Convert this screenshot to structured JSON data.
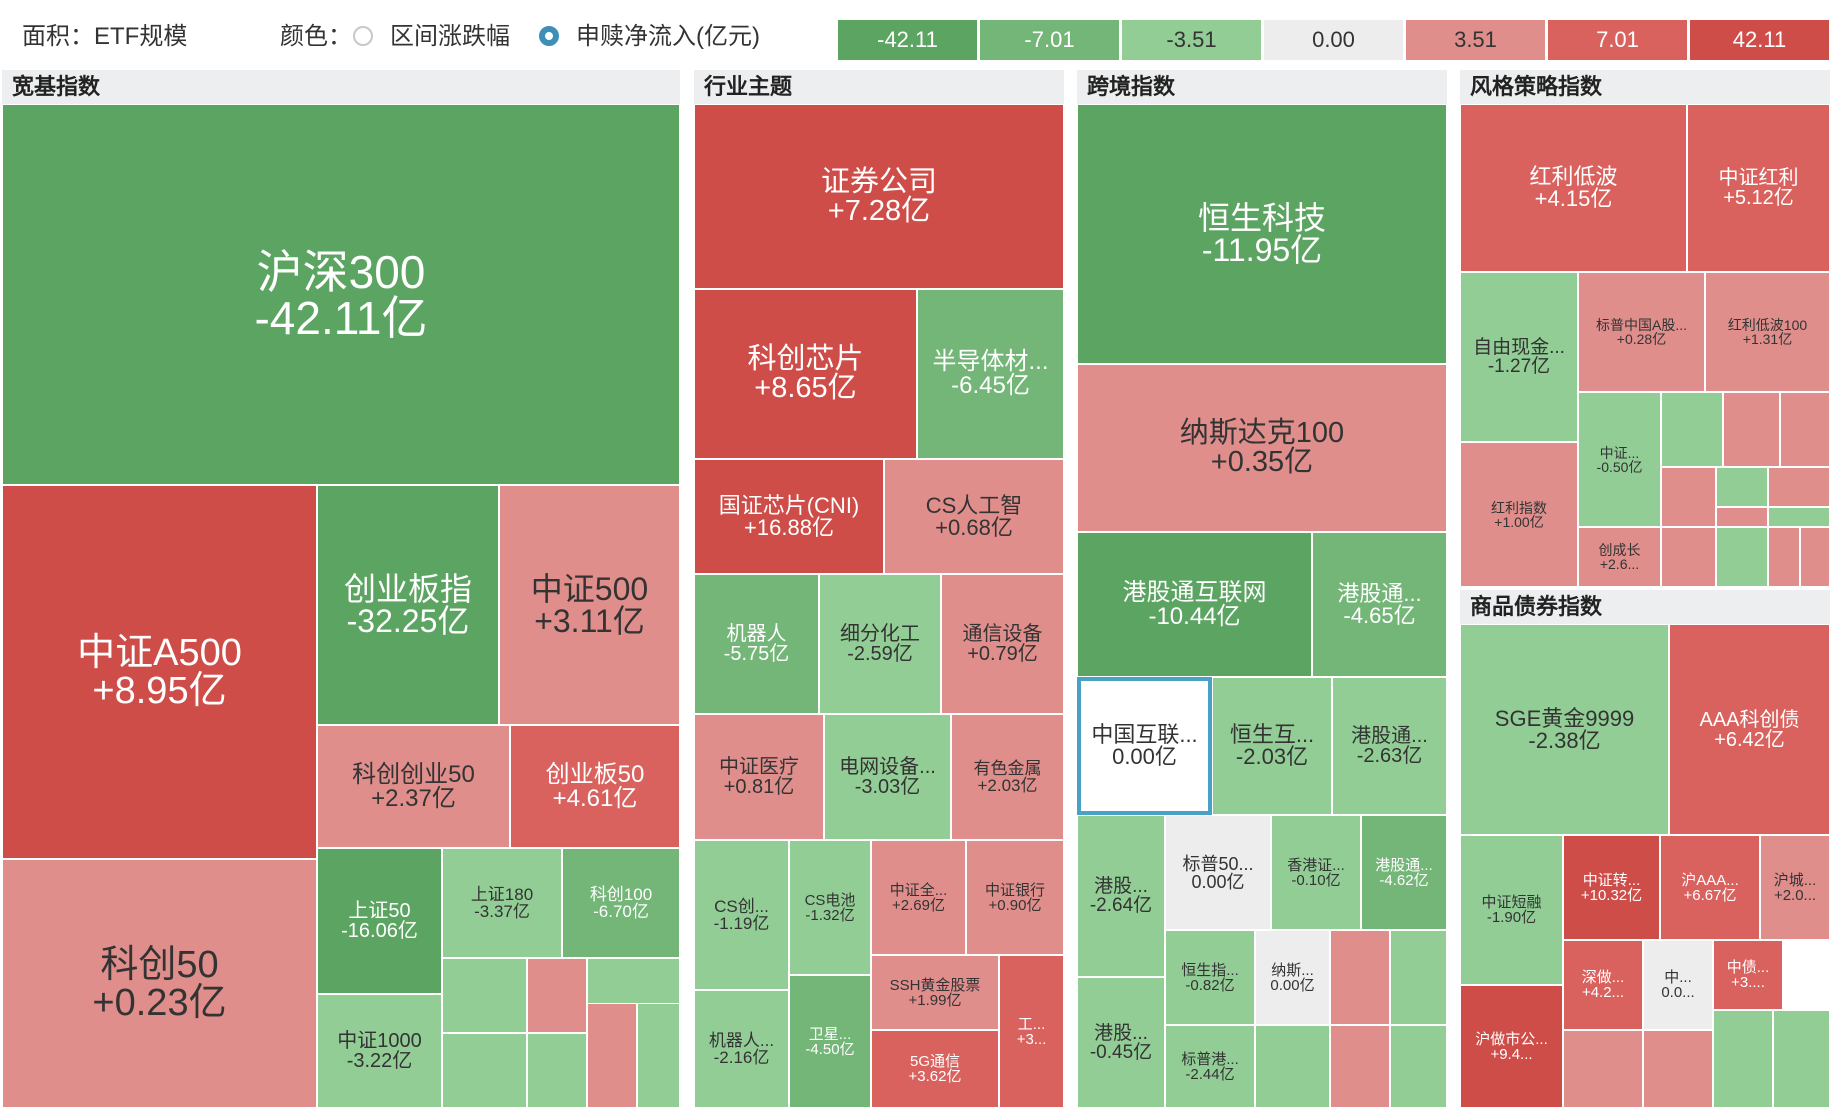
{
  "toolbar": {
    "area_label": "面积：ETF规模",
    "color_label": "颜色：",
    "option_range": "区间涨跌幅",
    "option_flow": "申赎净流入(亿元)",
    "selected": "option_flow"
  },
  "legend": [
    {
      "label": "-42.11",
      "color": "#5ca462",
      "text": "#ffffff"
    },
    {
      "label": "-7.01",
      "color": "#73b678",
      "text": "#ffffff"
    },
    {
      "label": "-3.51",
      "color": "#92cd96",
      "text": "#333333"
    },
    {
      "label": "0.00",
      "color": "#ededed",
      "text": "#333333"
    },
    {
      "label": "3.51",
      "color": "#df8e8c",
      "text": "#333333"
    },
    {
      "label": "7.01",
      "color": "#d9625f",
      "text": "#ffffff"
    },
    {
      "label": "42.11",
      "color": "#cf4d49",
      "text": "#ffffff"
    }
  ],
  "panels": [
    {
      "title": "宽基指数"
    },
    {
      "title": "行业主题"
    },
    {
      "title": "跨境指数"
    },
    {
      "title": "风格策略指数"
    },
    {
      "title": "商品债券指数"
    }
  ],
  "tiles": [
    {
      "name": "沪深300",
      "flow": "-42.11亿",
      "color": "#5ca462"
    },
    {
      "name": "中证A500",
      "flow": "+8.95亿",
      "color": "#cf4d49"
    },
    {
      "name": "创业板指",
      "flow": "-32.25亿",
      "color": "#5ca462"
    },
    {
      "name": "中证500",
      "flow": "+3.11亿",
      "color": "#df8e8c"
    },
    {
      "name": "科创创业50",
      "flow": "+2.37亿",
      "color": "#df8e8c"
    },
    {
      "name": "创业板50",
      "flow": "+4.61亿",
      "color": "#d9625f"
    },
    {
      "name": "科创50",
      "flow": "+0.23亿",
      "color": "#df8e8c"
    },
    {
      "name": "上证50",
      "flow": "-16.06亿",
      "color": "#5ca462"
    },
    {
      "name": "上证180",
      "flow": "-3.37亿",
      "color": "#92cd96"
    },
    {
      "name": "科创100",
      "flow": "-6.70亿",
      "color": "#73b678"
    },
    {
      "name": "中证1000",
      "flow": "-3.22亿",
      "color": "#92cd96"
    },
    {
      "name": "",
      "flow": "",
      "color": "#92cd96"
    },
    {
      "name": "",
      "flow": "",
      "color": "#df8e8c"
    },
    {
      "name": "",
      "flow": "",
      "color": "#92cd96"
    },
    {
      "name": "",
      "flow": "",
      "color": "#92cd96"
    },
    {
      "name": "",
      "flow": "",
      "color": "#92cd96"
    },
    {
      "name": "",
      "flow": "",
      "color": "#df8e8c"
    },
    {
      "name": "",
      "flow": "",
      "color": "#92cd96"
    },
    {
      "name": "",
      "flow": "",
      "color": "#92cd96"
    },
    {
      "name": "",
      "flow": "",
      "color": "#92cd96"
    },
    {
      "name": "证券公司",
      "flow": "+7.28亿",
      "color": "#cf4d49"
    },
    {
      "name": "科创芯片",
      "flow": "+8.65亿",
      "color": "#cf4d49"
    },
    {
      "name": "半导体材...",
      "flow": "-6.45亿",
      "color": "#73b678"
    },
    {
      "name": "国证芯片(CNI)",
      "flow": "+16.88亿",
      "color": "#cf4d49"
    },
    {
      "name": "CS人工智",
      "flow": "+0.68亿",
      "color": "#df8e8c"
    },
    {
      "name": "机器人",
      "flow": "-5.75亿",
      "color": "#73b678"
    },
    {
      "name": "细分化工",
      "flow": "-2.59亿",
      "color": "#92cd96"
    },
    {
      "name": "通信设备",
      "flow": "+0.79亿",
      "color": "#df8e8c"
    },
    {
      "name": "中证医疗",
      "flow": "+0.81亿",
      "color": "#df8e8c"
    },
    {
      "name": "电网设备...",
      "flow": "-3.03亿",
      "color": "#92cd96"
    },
    {
      "name": "有色金属",
      "flow": "+2.03亿",
      "color": "#df8e8c"
    },
    {
      "name": "CS创...",
      "flow": "-1.19亿",
      "color": "#92cd96"
    },
    {
      "name": "CS电池",
      "flow": "-1.32亿",
      "color": "#92cd96"
    },
    {
      "name": "中证全...",
      "flow": "+2.69亿",
      "color": "#df8e8c"
    },
    {
      "name": "中证银行",
      "flow": "+0.90亿",
      "color": "#df8e8c"
    },
    {
      "name": "SSH黄金股票",
      "flow": "+1.99亿",
      "color": "#df8e8c"
    },
    {
      "name": "机器人...",
      "flow": "-2.16亿",
      "color": "#92cd96"
    },
    {
      "name": "卫星...",
      "flow": "-4.50亿",
      "color": "#73b678"
    },
    {
      "name": "5G通信",
      "flow": "+3.62亿",
      "color": "#d9625f"
    },
    {
      "name": "工...",
      "flow": "+3...",
      "color": "#d9625f"
    },
    {
      "name": "恒生科技",
      "flow": "-11.95亿",
      "color": "#5ca462"
    },
    {
      "name": "纳斯达克100",
      "flow": "+0.35亿",
      "color": "#df8e8c"
    },
    {
      "name": "港股通互联网",
      "flow": "-10.44亿",
      "color": "#5ca462"
    },
    {
      "name": "港股通...",
      "flow": "-4.65亿",
      "color": "#73b678"
    },
    {
      "name": "中国互联...",
      "flow": "0.00亿",
      "color": "#ffffff"
    },
    {
      "name": "恒生互...",
      "flow": "-2.03亿",
      "color": "#92cd96"
    },
    {
      "name": "港股通...",
      "flow": "-2.63亿",
      "color": "#92cd96"
    },
    {
      "name": "港股...",
      "flow": "-2.64亿",
      "color": "#92cd96"
    },
    {
      "name": "标普50...",
      "flow": "0.00亿",
      "color": "#ededed"
    },
    {
      "name": "香港证...",
      "flow": "-0.10亿",
      "color": "#92cd96"
    },
    {
      "name": "港股通...",
      "flow": "-4.62亿",
      "color": "#73b678"
    },
    {
      "name": "恒生指...",
      "flow": "-0.82亿",
      "color": "#92cd96"
    },
    {
      "name": "纳斯...",
      "flow": "0.00亿",
      "color": "#ededed"
    },
    {
      "name": "港股...",
      "flow": "-0.45亿",
      "color": "#92cd96"
    },
    {
      "name": "标普港...",
      "flow": "-2.44亿",
      "color": "#92cd96"
    },
    {
      "name": "",
      "flow": "",
      "color": "#df8e8c"
    },
    {
      "name": "",
      "flow": "",
      "color": "#92cd96"
    },
    {
      "name": "",
      "flow": "",
      "color": "#92cd96"
    },
    {
      "name": "",
      "flow": "",
      "color": "#df8e8c"
    },
    {
      "name": "",
      "flow": "",
      "color": "#92cd96"
    },
    {
      "name": "",
      "flow": "",
      "color": "#92cd96"
    },
    {
      "name": "红利低波",
      "flow": "+4.15亿",
      "color": "#d9625f"
    },
    {
      "name": "中证红利",
      "flow": "+5.12亿",
      "color": "#d9625f"
    },
    {
      "name": "自由现金...",
      "flow": "-1.27亿",
      "color": "#92cd96"
    },
    {
      "name": "标普中国A股...",
      "flow": "+0.28亿",
      "color": "#df8e8c"
    },
    {
      "name": "红利低波100",
      "flow": "+1.31亿",
      "color": "#df8e8c"
    },
    {
      "name": "中证...",
      "flow": "-0.50亿",
      "color": "#92cd96"
    },
    {
      "name": "红利指数",
      "flow": "+1.00亿",
      "color": "#df8e8c"
    },
    {
      "name": "创成长",
      "flow": "+2.6...",
      "color": "#df8e8c"
    },
    {
      "name": "",
      "flow": "",
      "color": "#92cd96"
    },
    {
      "name": "",
      "flow": "",
      "color": "#df8e8c"
    },
    {
      "name": "",
      "flow": "",
      "color": "#df8e8c"
    },
    {
      "name": "",
      "flow": "",
      "color": "#df8e8c"
    },
    {
      "name": "",
      "flow": "",
      "color": "#92cd96"
    },
    {
      "name": "",
      "flow": "",
      "color": "#df8e8c"
    },
    {
      "name": "",
      "flow": "",
      "color": "#df8e8c"
    },
    {
      "name": "",
      "flow": "",
      "color": "#92cd96"
    },
    {
      "name": "",
      "flow": "",
      "color": "#df8e8c"
    },
    {
      "name": "",
      "flow": "",
      "color": "#92cd96"
    },
    {
      "name": "",
      "flow": "",
      "color": "#df8e8c"
    },
    {
      "name": "",
      "flow": "",
      "color": "#df8e8c"
    },
    {
      "name": "",
      "flow": "",
      "color": "#92cd96"
    },
    {
      "name": "SGE黄金9999",
      "flow": "-2.38亿",
      "color": "#92cd96"
    },
    {
      "name": "AAA科创债",
      "flow": "+6.42亿",
      "color": "#d9625f"
    },
    {
      "name": "中证短融",
      "flow": "-1.90亿",
      "color": "#92cd96"
    },
    {
      "name": "中证转...",
      "flow": "+10.32亿",
      "color": "#cf4d49"
    },
    {
      "name": "沪AAA...",
      "flow": "+6.67亿",
      "color": "#d9625f"
    },
    {
      "name": "沪城...",
      "flow": "+2.0...",
      "color": "#df8e8c"
    },
    {
      "name": "深做...",
      "flow": "+4.2...",
      "color": "#d9625f"
    },
    {
      "name": "中...",
      "flow": "0.0...",
      "color": "#ededed"
    },
    {
      "name": "中债...",
      "flow": "+3....",
      "color": "#d9625f"
    },
    {
      "name": "沪做市公...",
      "flow": "+9.4...",
      "color": "#cf4d49"
    },
    {
      "name": "",
      "flow": "",
      "color": "#df8e8c"
    },
    {
      "name": "",
      "flow": "",
      "color": "#df8e8c"
    },
    {
      "name": "",
      "flow": "",
      "color": "#92cd96"
    },
    {
      "name": "",
      "flow": "",
      "color": "#92cd96"
    }
  ]
}
